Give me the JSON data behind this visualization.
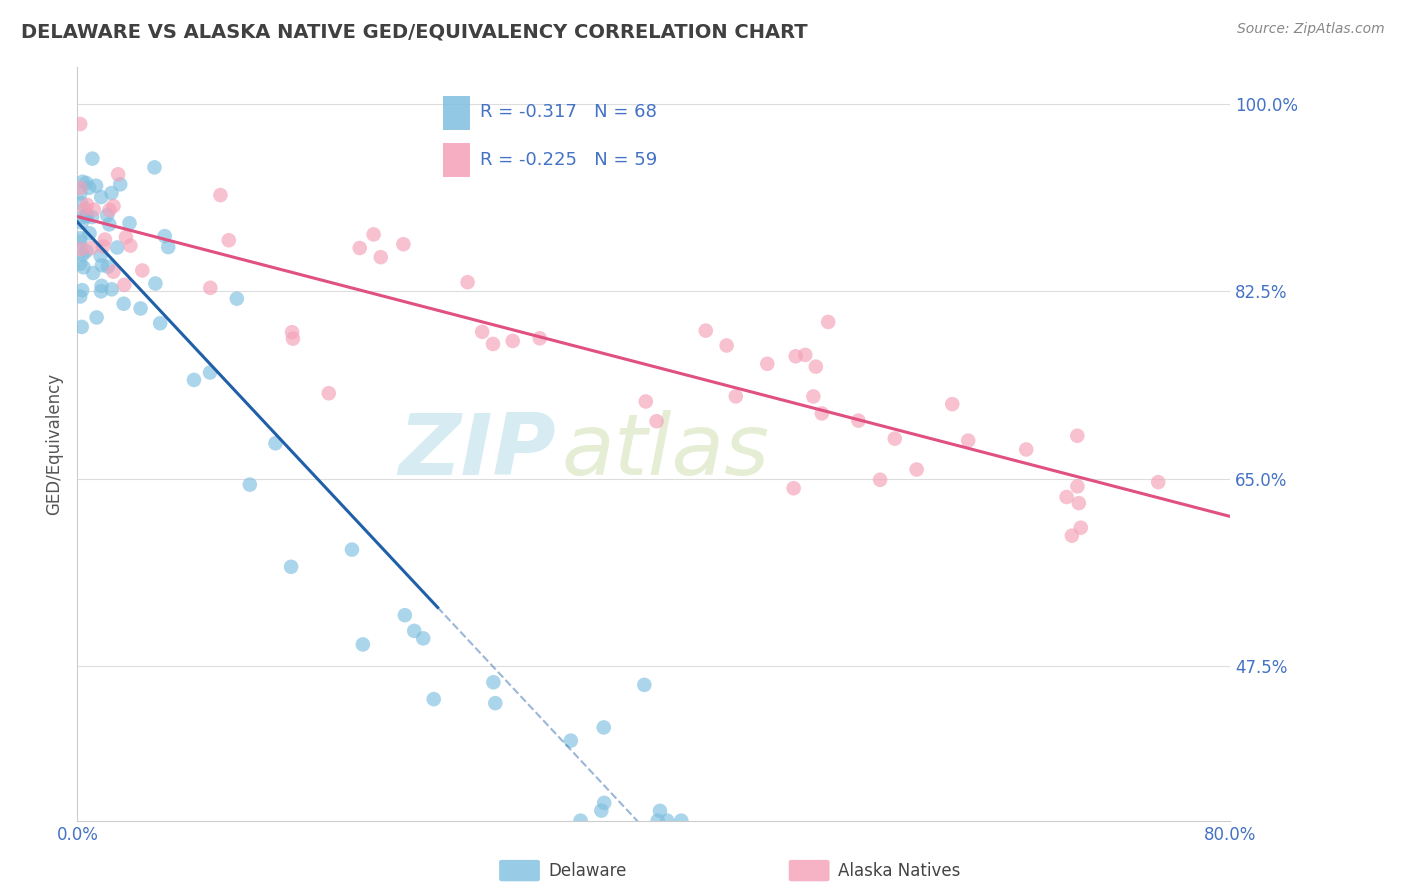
{
  "title": "DELAWARE VS ALASKA NATIVE GED/EQUIVALENCY CORRELATION CHART",
  "source": "Source: ZipAtlas.com",
  "ylabel": "GED/Equivalency",
  "legend_label1": "Delaware",
  "legend_label2": "Alaska Natives",
  "R1": -0.317,
  "N1": 68,
  "R2": -0.225,
  "N2": 59,
  "x_min": 0.0,
  "x_max": 0.8,
  "y_min": 0.33,
  "y_max": 1.035,
  "y_ticks": [
    1.0,
    0.825,
    0.65,
    0.475
  ],
  "y_tick_labels": [
    "100.0%",
    "82.5%",
    "65.0%",
    "47.5%"
  ],
  "blue_color": "#7fbfdf",
  "pink_color": "#f4a0b8",
  "blue_line_color": "#2060a8",
  "pink_line_color": "#e05080",
  "watermark_zip": "ZIP",
  "watermark_atlas": "atlas",
  "title_color": "#404040",
  "title_fontsize": 14,
  "source_color": "#888888",
  "ax_label_color": "#4472c4",
  "legend_border_color": "#cccccc",
  "grid_color": "#dddddd"
}
